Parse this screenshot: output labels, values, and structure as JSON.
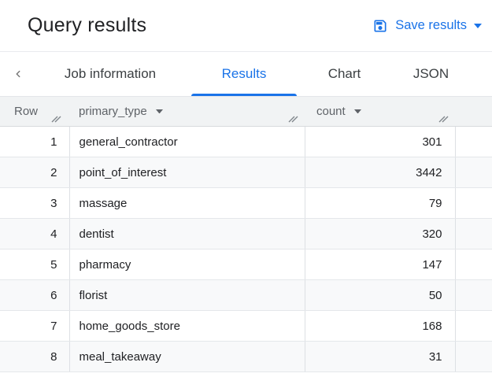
{
  "header": {
    "title": "Query results",
    "save_button_label": "Save results"
  },
  "icons": {
    "save": "save-icon (floppy disk)",
    "save_caret": "▼",
    "back_chevron": "‹",
    "sort_caret": "▼",
    "column_resize": "⫽"
  },
  "tabs": {
    "items": [
      {
        "label": "Job information",
        "active": false
      },
      {
        "label": "Results",
        "active": true
      },
      {
        "label": "Chart",
        "active": false
      },
      {
        "label": "JSON",
        "active": false
      }
    ]
  },
  "table": {
    "columns": [
      {
        "label": "Row",
        "sortable": false
      },
      {
        "label": "primary_type",
        "sortable": true
      },
      {
        "label": "count",
        "sortable": true
      }
    ],
    "rows": [
      {
        "row": "1",
        "primary_type": "general_contractor",
        "count": "301"
      },
      {
        "row": "2",
        "primary_type": "point_of_interest",
        "count": "3442"
      },
      {
        "row": "3",
        "primary_type": "massage",
        "count": "79"
      },
      {
        "row": "4",
        "primary_type": "dentist",
        "count": "320"
      },
      {
        "row": "5",
        "primary_type": "pharmacy",
        "count": "147"
      },
      {
        "row": "6",
        "primary_type": "florist",
        "count": "50"
      },
      {
        "row": "7",
        "primary_type": "home_goods_store",
        "count": "168"
      },
      {
        "row": "8",
        "primary_type": "meal_takeaway",
        "count": "31"
      }
    ]
  },
  "colors": {
    "accent": "#1a73e8",
    "header_bg": "#f1f3f4",
    "stripe_bg": "#f8f9fa",
    "border": "#dde0e4",
    "text_primary": "#202124",
    "text_secondary": "#5f6368"
  }
}
